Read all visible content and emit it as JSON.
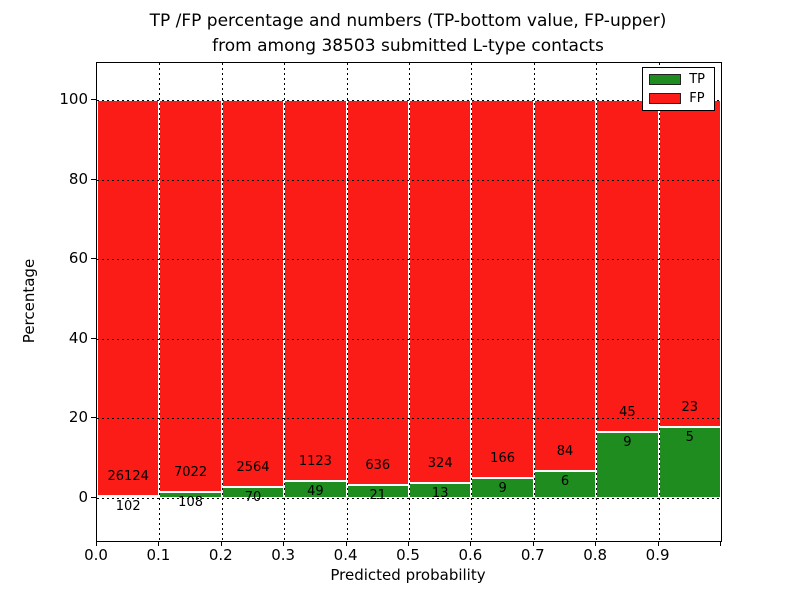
{
  "title": {
    "line1": "TP /FP percentage and numbers (TP-bottom value, FP-upper)",
    "line2": "from among 38503 submitted L-type contacts"
  },
  "chart_data": {
    "type": "bar",
    "stacked": true,
    "normalized": "each bar scaled to 100%",
    "title": "TP /FP percentage and numbers (TP-bottom value, FP-upper) from among 38503 submitted L-type contacts",
    "total_submitted_contacts": 38503,
    "xlabel": "Predicted probability",
    "ylabel": "Percentage",
    "xlim": [
      0.0,
      1.0
    ],
    "ylim": [
      -10.8,
      109.3
    ],
    "bin_width": 0.1,
    "x_tick_labels": [
      "0.0",
      "0.1",
      "0.2",
      "0.3",
      "0.4",
      "0.5",
      "0.6",
      "0.7",
      "0.8",
      "0.9"
    ],
    "y_ticks": [
      0,
      20,
      40,
      60,
      80,
      100
    ],
    "grid": true,
    "legend_position": "upper right",
    "series": [
      {
        "name": "TP",
        "color": "#1f8c1f",
        "counts": [
          102,
          108,
          70,
          49,
          21,
          13,
          9,
          6,
          9,
          5
        ]
      },
      {
        "name": "FP",
        "color": "#fb1b17",
        "counts": [
          26124,
          7022,
          2564,
          1123,
          636,
          324,
          166,
          84,
          45,
          23
        ]
      }
    ],
    "tp_percent_per_bin": [
      0.39,
      1.51,
      2.66,
      4.18,
      3.2,
      3.86,
      5.14,
      6.67,
      16.67,
      17.86
    ]
  }
}
